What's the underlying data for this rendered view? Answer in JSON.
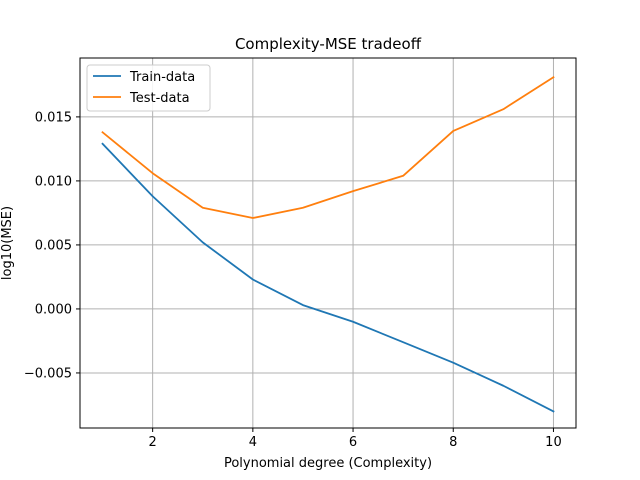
{
  "chart_data": {
    "type": "line",
    "title": "Complexity-MSE tradeoff",
    "xlabel": "Polynomial degree (Complexity)",
    "ylabel": "log10(MSE)",
    "x": [
      1,
      2,
      3,
      4,
      5,
      6,
      7,
      8,
      9,
      10
    ],
    "xlim": [
      0.55,
      10.45
    ],
    "ylim": [
      -0.0093,
      0.0196
    ],
    "x_ticks": [
      2,
      4,
      6,
      8,
      10
    ],
    "x_tick_labels": [
      "2",
      "4",
      "6",
      "8",
      "10"
    ],
    "y_ticks": [
      -0.005,
      0.0,
      0.005,
      0.01,
      0.015
    ],
    "y_tick_labels": [
      "−0.005",
      "0.000",
      "0.005",
      "0.010",
      "0.015"
    ],
    "grid": true,
    "legend_position": "top-left",
    "series": [
      {
        "name": "Train-data",
        "color": "#1f77b4",
        "values": [
          0.0129,
          0.0088,
          0.0052,
          0.0023,
          0.0003,
          -0.001,
          -0.0026,
          -0.0042,
          -0.006,
          -0.008
        ]
      },
      {
        "name": "Test-data",
        "color": "#ff7f0e",
        "values": [
          0.0138,
          0.0106,
          0.0079,
          0.0071,
          0.0079,
          0.0092,
          0.0104,
          0.0139,
          0.0156,
          0.0181
        ]
      }
    ]
  }
}
